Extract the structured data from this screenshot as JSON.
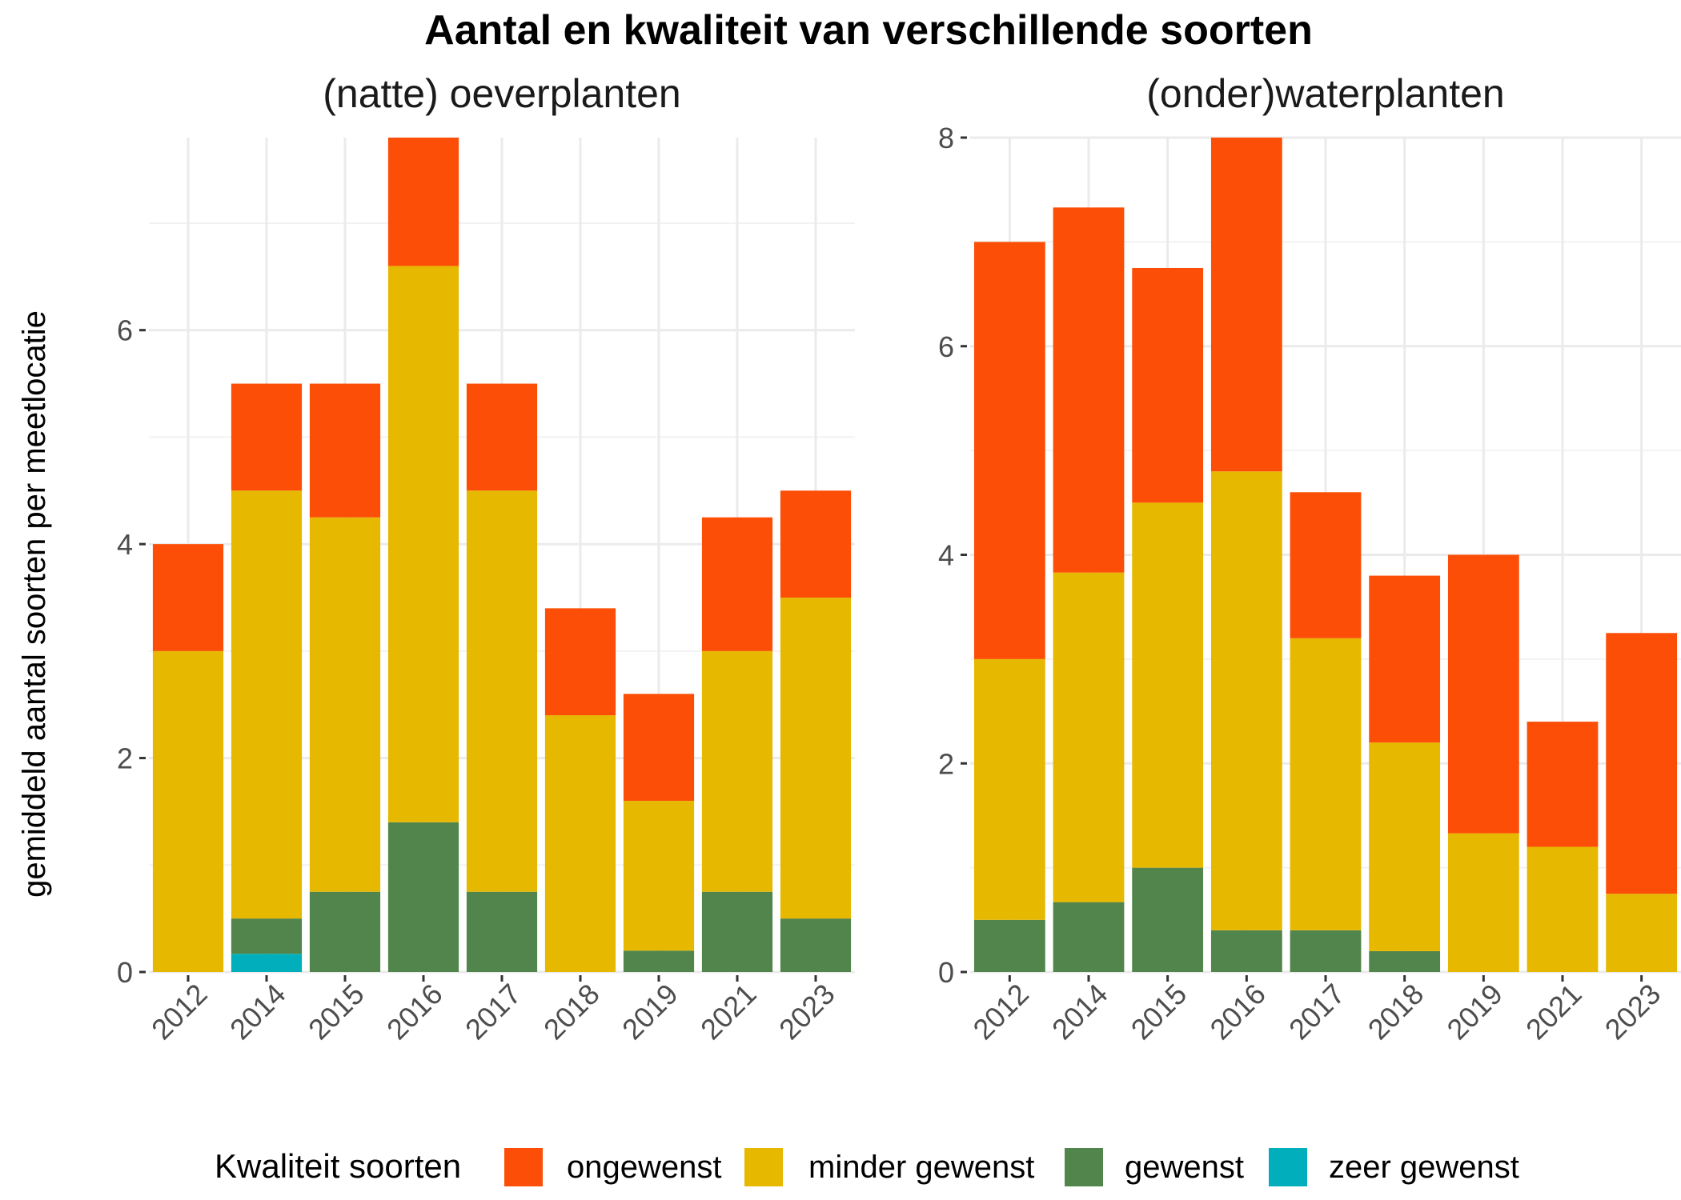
{
  "chart_data": {
    "type": "bar",
    "stacked": true,
    "title": "Aantal en kwaliteit van verschillende soorten",
    "ylabel": "gemiddeld aantal soorten per meetlocatie",
    "legend": {
      "title": "Kwaliteit soorten",
      "position": "bottom",
      "items": [
        {
          "name": "ongewenst",
          "color": "#FC4E07"
        },
        {
          "name": "minder gewenst",
          "color": "#E7B800"
        },
        {
          "name": "gewenst",
          "color": "#52854C"
        },
        {
          "name": "zeer gewenst",
          "color": "#00AFBB"
        }
      ]
    },
    "stack_order": [
      "zeer gewenst",
      "gewenst",
      "minder gewenst",
      "ongewenst"
    ],
    "grid": true,
    "panels": [
      {
        "subtitle": "(natte) oeverplanten",
        "categories": [
          "2012",
          "2014",
          "2015",
          "2016",
          "2017",
          "2018",
          "2019",
          "2021",
          "2023"
        ],
        "ylim": [
          0,
          7.8
        ],
        "yticks": [
          0,
          2,
          4,
          6
        ],
        "series": [
          {
            "name": "zeer gewenst",
            "values": [
              0,
              0.17,
              0,
              0,
              0,
              0,
              0,
              0,
              0
            ]
          },
          {
            "name": "gewenst",
            "values": [
              0,
              0.33,
              0.75,
              1.4,
              0.75,
              0,
              0.2,
              0.75,
              0.5
            ]
          },
          {
            "name": "minder gewenst",
            "values": [
              3.0,
              4.0,
              3.5,
              5.2,
              3.75,
              2.4,
              1.4,
              2.25,
              3.0
            ]
          },
          {
            "name": "ongewenst",
            "values": [
              1.0,
              1.0,
              1.25,
              1.2,
              1.0,
              1.0,
              1.0,
              1.25,
              1.0
            ]
          }
        ]
      },
      {
        "subtitle": "(onder)waterplanten",
        "categories": [
          "2012",
          "2014",
          "2015",
          "2016",
          "2017",
          "2018",
          "2019",
          "2021",
          "2023"
        ],
        "ylim": [
          0,
          8
        ],
        "yticks": [
          0,
          2,
          4,
          6,
          8
        ],
        "series": [
          {
            "name": "zeer gewenst",
            "values": [
              0,
              0,
              0,
              0,
              0,
              0,
              0,
              0,
              0
            ]
          },
          {
            "name": "gewenst",
            "values": [
              0.5,
              0.67,
              1.0,
              0.4,
              0.4,
              0.2,
              0,
              0,
              0
            ]
          },
          {
            "name": "minder gewenst",
            "values": [
              2.5,
              3.16,
              3.5,
              4.4,
              2.8,
              2.0,
              1.33,
              1.2,
              0.75
            ]
          },
          {
            "name": "ongewenst",
            "values": [
              4.0,
              3.5,
              2.25,
              3.2,
              1.4,
              1.6,
              2.67,
              1.2,
              2.5
            ]
          }
        ]
      }
    ]
  }
}
